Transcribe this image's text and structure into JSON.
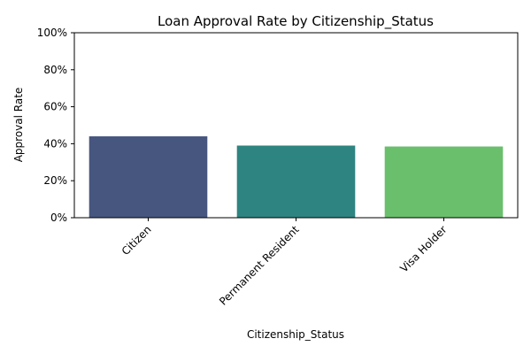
{
  "chart_data": {
    "type": "bar",
    "title": "Loan Approval Rate by Citizenship_Status",
    "xlabel": "Citizenship_Status",
    "ylabel": "Approval Rate",
    "categories": [
      "Citizen",
      "Permanent Resident",
      "Visa Holder"
    ],
    "values": [
      0.44,
      0.39,
      0.385
    ],
    "ylim": [
      0,
      1
    ],
    "yticks": [
      0,
      0.2,
      0.4,
      0.6,
      0.8,
      1.0
    ],
    "ytick_labels": [
      "0%",
      "20%",
      "40%",
      "60%",
      "80%",
      "100%"
    ],
    "colors": [
      "#46567f",
      "#2e8480",
      "#6abf6d"
    ],
    "grid": false,
    "legend": "none"
  }
}
